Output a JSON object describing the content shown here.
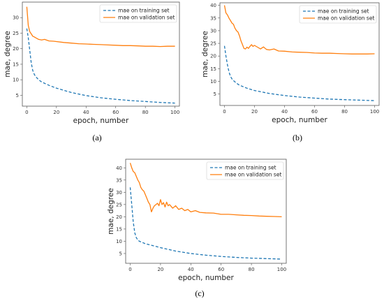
{
  "chart_data": [
    {
      "type": "line",
      "panel_label": "(a)",
      "xlabel": "epoch, number",
      "ylabel": "mae, degree",
      "xlim": [
        -3,
        103
      ],
      "ylim": [
        1.5,
        35
      ],
      "xticks": [
        0,
        20,
        40,
        60,
        80,
        100
      ],
      "yticks": [
        5,
        10,
        15,
        20,
        25,
        30
      ],
      "grid": false,
      "legend": "top-right",
      "series": [
        {
          "name": "mae on training set",
          "color": "#1f77b4",
          "style": "dashed",
          "x": [
            0,
            1,
            2,
            3,
            4,
            5,
            6,
            8,
            10,
            15,
            20,
            30,
            40,
            50,
            60,
            70,
            80,
            90,
            100
          ],
          "y": [
            26.5,
            23.5,
            19.5,
            15.5,
            13.0,
            11.8,
            11.0,
            10.0,
            9.3,
            8.2,
            7.3,
            5.9,
            4.9,
            4.2,
            3.7,
            3.3,
            3.0,
            2.7,
            2.5
          ]
        },
        {
          "name": "mae on validation set",
          "color": "#ff7f0e",
          "style": "solid",
          "x": [
            0,
            1,
            2,
            3,
            4,
            5,
            6,
            8,
            10,
            12,
            15,
            18,
            20,
            25,
            30,
            35,
            40,
            45,
            50,
            55,
            60,
            65,
            70,
            75,
            80,
            85,
            90,
            95,
            100
          ],
          "y": [
            33.5,
            27.5,
            25.5,
            24.8,
            24.0,
            23.8,
            23.5,
            23.0,
            22.8,
            23.0,
            22.5,
            22.4,
            22.3,
            22.0,
            21.8,
            21.6,
            21.5,
            21.4,
            21.3,
            21.2,
            21.1,
            21.0,
            21.0,
            20.9,
            20.8,
            20.8,
            20.7,
            20.8,
            20.8
          ]
        }
      ]
    },
    {
      "type": "line",
      "panel_label": "(b)",
      "xlabel": "epoch, number",
      "ylabel": "mae, degree",
      "xlim": [
        -3,
        103
      ],
      "ylim": [
        0.5,
        41
      ],
      "xticks": [
        0,
        20,
        40,
        60,
        80,
        100
      ],
      "yticks": [
        5,
        10,
        15,
        20,
        25,
        30,
        35,
        40
      ],
      "grid": false,
      "legend": "top-right",
      "series": [
        {
          "name": "mae on training set",
          "color": "#1f77b4",
          "style": "dashed",
          "x": [
            0,
            1,
            2,
            3,
            4,
            5,
            6,
            8,
            10,
            15,
            20,
            30,
            40,
            50,
            60,
            70,
            80,
            90,
            100
          ],
          "y": [
            24.0,
            20.0,
            16.5,
            13.8,
            12.0,
            11.0,
            10.3,
            9.3,
            8.5,
            7.3,
            6.4,
            5.2,
            4.4,
            3.8,
            3.4,
            3.0,
            2.8,
            2.6,
            2.4
          ]
        },
        {
          "name": "mae on validation set",
          "color": "#ff7f0e",
          "style": "solid",
          "x": [
            0,
            1,
            2,
            3,
            4,
            5,
            6,
            7,
            8,
            9,
            10,
            11,
            12,
            13,
            14,
            15,
            16,
            17,
            18,
            19,
            20,
            22,
            24,
            26,
            28,
            30,
            33,
            36,
            40,
            45,
            50,
            55,
            60,
            65,
            70,
            75,
            80,
            85,
            90,
            95,
            100
          ],
          "y": [
            40.0,
            37.0,
            36.2,
            35.0,
            34.0,
            33.0,
            32.5,
            31.0,
            30.0,
            29.5,
            28.0,
            26.0,
            24.5,
            23.0,
            22.8,
            23.5,
            23.0,
            23.8,
            24.5,
            23.8,
            24.2,
            23.5,
            22.8,
            23.6,
            22.6,
            22.4,
            22.8,
            22.0,
            21.9,
            21.6,
            21.5,
            21.4,
            21.2,
            21.1,
            21.1,
            21.0,
            20.9,
            20.8,
            20.8,
            20.8,
            20.9
          ]
        }
      ]
    },
    {
      "type": "line",
      "panel_label": "(c)",
      "xlabel": "epoch, number",
      "ylabel": "mae, degree",
      "xlim": [
        -3,
        103
      ],
      "ylim": [
        1.0,
        43.5
      ],
      "xticks": [
        0,
        20,
        40,
        60,
        80,
        100
      ],
      "yticks": [
        5,
        10,
        15,
        20,
        25,
        30,
        35,
        40
      ],
      "grid": false,
      "legend": "top-right",
      "series": [
        {
          "name": "mae on training set",
          "color": "#1f77b4",
          "style": "dashed",
          "x": [
            0,
            1,
            2,
            3,
            4,
            5,
            6,
            8,
            10,
            15,
            20,
            30,
            40,
            50,
            60,
            70,
            80,
            90,
            100
          ],
          "y": [
            32.0,
            25.0,
            18.0,
            13.5,
            11.5,
            10.5,
            10.0,
            9.5,
            9.0,
            8.2,
            7.4,
            6.0,
            5.0,
            4.3,
            3.8,
            3.4,
            3.1,
            2.9,
            2.7
          ]
        },
        {
          "name": "mae on validation set",
          "color": "#ff7f0e",
          "style": "solid",
          "x": [
            0,
            1,
            2,
            3,
            4,
            5,
            6,
            7,
            8,
            9,
            10,
            11,
            12,
            13,
            14,
            15,
            16,
            17,
            18,
            19,
            20,
            21,
            22,
            23,
            24,
            25,
            26,
            28,
            30,
            32,
            34,
            36,
            38,
            40,
            43,
            46,
            50,
            55,
            60,
            65,
            70,
            75,
            80,
            85,
            90,
            95,
            100
          ],
          "y": [
            42.0,
            40.0,
            38.5,
            38.0,
            36.5,
            35.0,
            34.0,
            32.0,
            31.0,
            30.5,
            29.0,
            27.5,
            26.0,
            25.0,
            22.0,
            23.5,
            24.5,
            25.0,
            25.5,
            24.5,
            27.0,
            25.0,
            25.8,
            24.0,
            26.0,
            24.5,
            25.0,
            23.5,
            24.5,
            23.0,
            23.5,
            22.5,
            23.0,
            22.0,
            22.5,
            21.8,
            21.6,
            21.5,
            21.0,
            21.0,
            20.8,
            20.6,
            20.5,
            20.3,
            20.2,
            20.1,
            20.0
          ]
        }
      ]
    }
  ]
}
